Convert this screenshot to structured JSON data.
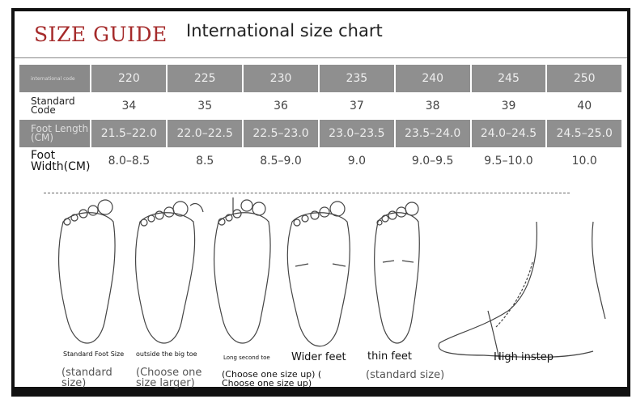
{
  "header": {
    "title": "SIZE GUIDE",
    "subtitle": "International size chart",
    "title_color": "#a52a2a"
  },
  "table": {
    "rows": [
      {
        "label": "international code",
        "values": [
          "220",
          "225",
          "230",
          "235",
          "240",
          "245",
          "250"
        ]
      },
      {
        "label": "Standard Code",
        "values": [
          "34",
          "35",
          "36",
          "37",
          "38",
          "39",
          "40"
        ]
      },
      {
        "label": "Foot Length (CM)",
        "values": [
          "21.5–22.0",
          "22.0–22.5",
          "22.5–23.0",
          "23.0–23.5",
          "23.5–24.0",
          "24.0–24.5",
          "24.5–25.0"
        ]
      },
      {
        "label": "Foot Width(CM)",
        "values": [
          "8.0–8.5",
          "8.5",
          "8.5–9.0",
          "9.0",
          "9.0–9.5",
          "9.5–10.0",
          "10.0"
        ]
      }
    ]
  },
  "foot_types": [
    {
      "name": "Standard Foot Size",
      "advice": "(standard size)"
    },
    {
      "name": "outside the big toe",
      "advice": "(Choose one size larger)"
    },
    {
      "name": "Long second toe",
      "advice": "(Choose one size up) ( Choose one size up)"
    },
    {
      "name": "Wider feet",
      "advice": ""
    },
    {
      "name": "thin feet",
      "advice": "(standard size)"
    },
    {
      "name": "High instep",
      "advice": ""
    }
  ]
}
